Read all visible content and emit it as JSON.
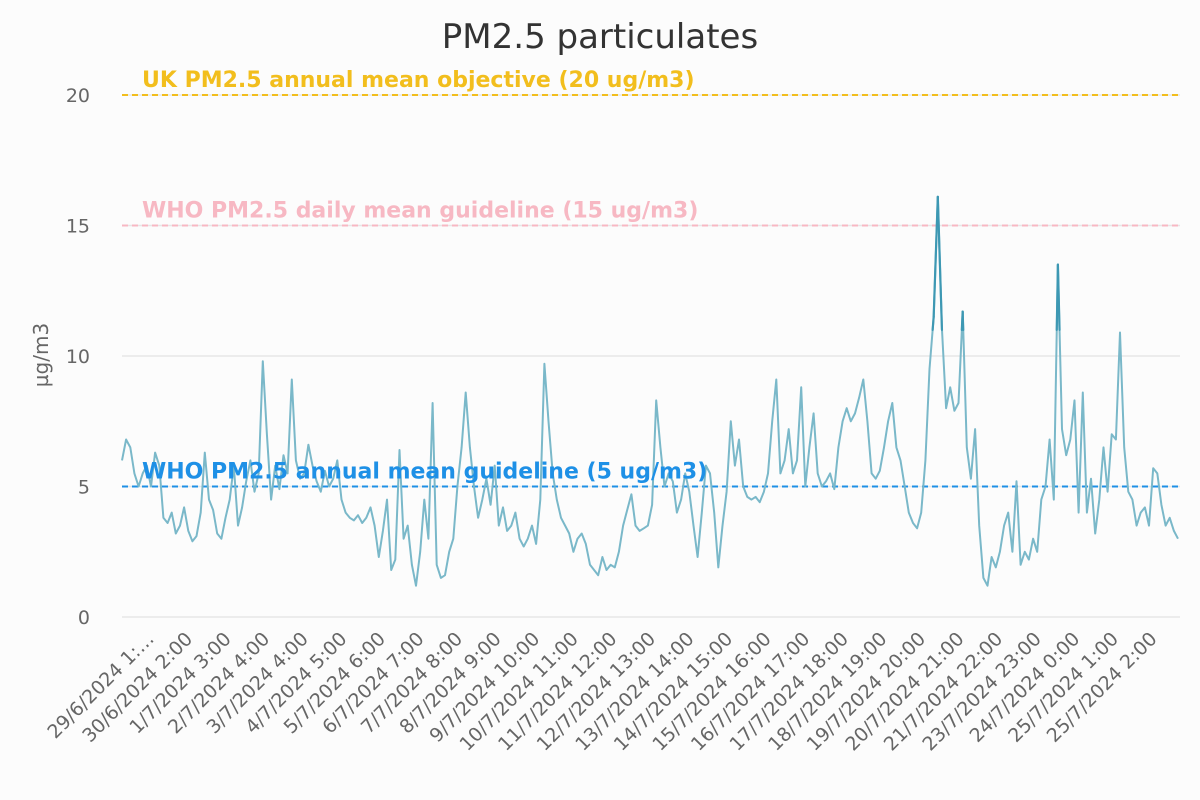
{
  "chart_data": {
    "type": "line",
    "title": "PM2.5 particulates",
    "xlabel": "",
    "ylabel": "µg/m3",
    "ylim": [
      0,
      20
    ],
    "yticks": [
      0,
      5,
      10,
      15,
      20
    ],
    "grid": true,
    "legend": "none",
    "x_tick_labels": [
      "29/6/2024 1:…",
      "30/6/2024 2:00",
      "1/7/2024 3:00",
      "2/7/2024 4:00",
      "3/7/2024 4:00",
      "4/7/2024 5:00",
      "5/7/2024 6:00",
      "6/7/2024 7:00",
      "7/7/2024 8:00",
      "8/7/2024 9:00",
      "9/7/2024 10:00",
      "10/7/2024 11:00",
      "11/7/2024 12:00",
      "12/7/2024 13:00",
      "13/7/2024 14:00",
      "14/7/2024 15:00",
      "15/7/2024 16:00",
      "16/7/2024 17:00",
      "17/7/2024 18:00",
      "18/7/2024 19:00",
      "19/7/2024 20:00",
      "20/7/2024 21:00",
      "21/7/2024 22:00",
      "23/7/2024 23:00",
      "24/7/2024 0:00",
      "25/7/2024 1:00",
      "25/7/2024 2:00"
    ],
    "reference_lines": [
      {
        "value": 20,
        "label": "UK PM2.5 annual mean objective (20 ug/m3)",
        "color": "#f2be1d"
      },
      {
        "value": 15,
        "label": "WHO PM2.5 daily mean guideline (15 ug/m3)",
        "color": "#f7b8c3"
      },
      {
        "value": 5,
        "label": "WHO PM2.5 annual mean guideline (5 ug/m3)",
        "color": "#1e90e6"
      }
    ],
    "series": [
      {
        "color": "#7ab8c9",
        "high_color": "#3d98b3",
        "high_threshold": 11,
        "values": [
          6.0,
          6.8,
          6.5,
          5.5,
          5.0,
          5.5,
          5.8,
          5.0,
          6.3,
          5.8,
          3.8,
          3.6,
          4.0,
          3.2,
          3.5,
          4.2,
          3.3,
          2.9,
          3.1,
          4.0,
          6.3,
          4.5,
          4.1,
          3.2,
          3.0,
          3.8,
          4.5,
          5.8,
          3.5,
          4.2,
          5.2,
          6.0,
          4.8,
          5.5,
          9.8,
          7.0,
          4.5,
          5.8,
          4.9,
          6.2,
          5.5,
          9.1,
          6.0,
          5.3,
          5.5,
          6.6,
          5.8,
          5.2,
          4.8,
          5.6,
          5.0,
          5.3,
          6.0,
          4.5,
          4.0,
          3.8,
          3.7,
          3.9,
          3.6,
          3.8,
          4.2,
          3.5,
          2.3,
          3.3,
          4.5,
          1.8,
          2.2,
          6.4,
          3.0,
          3.5,
          2.0,
          1.2,
          2.5,
          4.5,
          3.0,
          8.2,
          2.0,
          1.5,
          1.6,
          2.5,
          3.0,
          5.0,
          6.5,
          8.6,
          6.5,
          5.0,
          3.8,
          4.5,
          5.3,
          4.3,
          5.8,
          3.5,
          4.2,
          3.3,
          3.5,
          4.0,
          3.0,
          2.7,
          3.0,
          3.5,
          2.8,
          4.5,
          9.7,
          7.5,
          5.5,
          4.5,
          3.8,
          3.5,
          3.2,
          2.5,
          3.0,
          3.2,
          2.8,
          2.0,
          1.8,
          1.6,
          2.3,
          1.8,
          2.0,
          1.9,
          2.5,
          3.5,
          4.1,
          4.7,
          3.5,
          3.3,
          3.4,
          3.5,
          4.3,
          8.3,
          6.5,
          5.0,
          5.5,
          5.2,
          4.0,
          4.5,
          5.5,
          4.8,
          3.5,
          2.3,
          4.0,
          5.8,
          5.5,
          4.0,
          1.9,
          3.5,
          4.8,
          7.5,
          5.8,
          6.8,
          5.0,
          4.6,
          4.5,
          4.6,
          4.4,
          4.8,
          5.5,
          7.5,
          9.1,
          5.5,
          6.0,
          7.2,
          5.5,
          6.0,
          8.8,
          5.0,
          6.5,
          7.8,
          5.5,
          5.0,
          5.2,
          5.5,
          4.9,
          6.5,
          7.5,
          8.0,
          7.5,
          7.8,
          8.4,
          9.1,
          7.5,
          5.5,
          5.3,
          5.6,
          6.5,
          7.5,
          8.2,
          6.5,
          6.0,
          5.0,
          4.0,
          3.6,
          3.4,
          4.0,
          6.0,
          9.5,
          11.5,
          16.1,
          11.0,
          8.0,
          8.8,
          7.9,
          8.2,
          11.7,
          6.5,
          5.3,
          7.2,
          3.5,
          1.5,
          1.2,
          2.3,
          1.9,
          2.5,
          3.5,
          4.0,
          2.5,
          5.2,
          2.0,
          2.5,
          2.2,
          3.0,
          2.5,
          4.5,
          5.0,
          6.8,
          4.5,
          13.5,
          7.2,
          6.2,
          6.8,
          8.3,
          4.0,
          8.6,
          4.0,
          5.3,
          3.2,
          4.5,
          6.5,
          4.8,
          7.0,
          6.8,
          10.9,
          6.5,
          4.8,
          4.5,
          3.5,
          4.0,
          4.2,
          3.5,
          5.7,
          5.5,
          4.3,
          3.5,
          3.8,
          3.3,
          3.0
        ]
      }
    ]
  }
}
